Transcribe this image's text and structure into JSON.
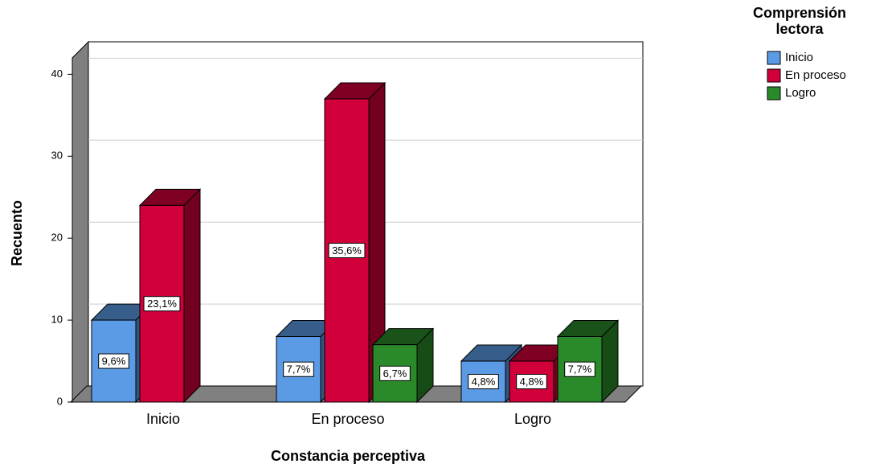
{
  "chart_data": {
    "type": "bar3d",
    "x_label": "Constancia perceptiva",
    "y_label": "Recuento",
    "legend_title": "Comprensión lectora",
    "categories": [
      "Inicio",
      "En proceso",
      "Logro"
    ],
    "series": [
      {
        "name": "Inicio",
        "color": "#5b9be6",
        "values": [
          10,
          8,
          5
        ],
        "percentages": [
          {
            "value": 9.6,
            "label": "9,6%"
          },
          {
            "value": 7.7,
            "label": "7,7%"
          },
          {
            "value": 4.8,
            "label": "4,8%"
          }
        ]
      },
      {
        "name": "En proceso",
        "color": "#d2003a",
        "values": [
          24,
          37,
          5
        ],
        "percentages": [
          {
            "value": 23.1,
            "label": "23,1%"
          },
          {
            "value": 35.6,
            "label": "35,6%"
          },
          {
            "value": 4.8,
            "label": "4,8%"
          }
        ]
      },
      {
        "name": "Logro",
        "color": "#2a8a2a",
        "values": [
          null,
          7,
          8
        ],
        "percentages": [
          null,
          {
            "value": 6.7,
            "label": "6,7%"
          },
          {
            "value": 7.7,
            "label": "7,7%"
          }
        ]
      }
    ],
    "ylim": [
      0,
      42
    ],
    "yticks": [
      0,
      10,
      20,
      30,
      40
    ],
    "grid": true,
    "legend": "right"
  }
}
